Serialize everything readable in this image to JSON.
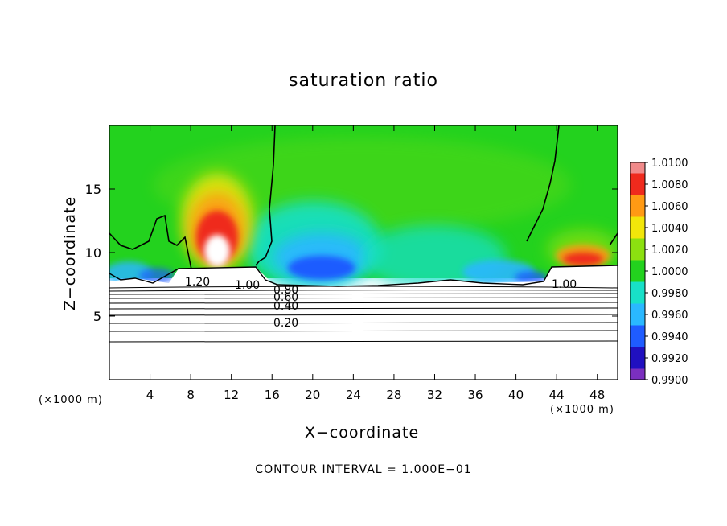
{
  "chart_data": {
    "type": "heatmap",
    "title": "saturation ratio",
    "xlabel": "X−coordinate",
    "ylabel": "Z−coordinate",
    "x_unit_label": "(×1000 m)",
    "xlim": [
      0,
      50
    ],
    "ylim": [
      0,
      20
    ],
    "x_ticks": [
      4,
      8,
      12,
      16,
      20,
      24,
      28,
      32,
      36,
      40,
      44,
      48
    ],
    "y_ticks": [
      5,
      10,
      15
    ],
    "colorbar": {
      "labels": [
        "0.9900",
        "0.9920",
        "0.9940",
        "0.9960",
        "0.9980",
        "1.0000",
        "1.0020",
        "1.0040",
        "1.0060",
        "1.0080",
        "1.0100"
      ],
      "colors": [
        "#7b2fbf",
        "#2010c0",
        "#1f5cff",
        "#2ab8ff",
        "#18e0c8",
        "#23d21e",
        "#8ce010",
        "#f2e60a",
        "#ff9a14",
        "#ef2a1d",
        "#f08a8a"
      ],
      "min": 0.99,
      "max": 1.01
    },
    "regions": [
      {
        "name": "upper-background",
        "x": [
          0,
          50
        ],
        "z": [
          8.5,
          20
        ],
        "value": 1.0
      }
    ],
    "anomalies": [
      {
        "x": 10.5,
        "z": 11.5,
        "value": 1.0065
      },
      {
        "x": 20.5,
        "z": 9.0,
        "value": 0.9935
      },
      {
        "x": 27.0,
        "z": 9.5,
        "value": 0.9955
      },
      {
        "x": 46.0,
        "z": 10.5,
        "value": 1.0055
      }
    ],
    "contour_labels": [
      "1.20",
      "1.00",
      "0.80",
      "0.60",
      "0.40",
      "0.20",
      "1.00"
    ],
    "contour_interval_text": "CONTOUR INTERVAL = 1.000E−01"
  }
}
